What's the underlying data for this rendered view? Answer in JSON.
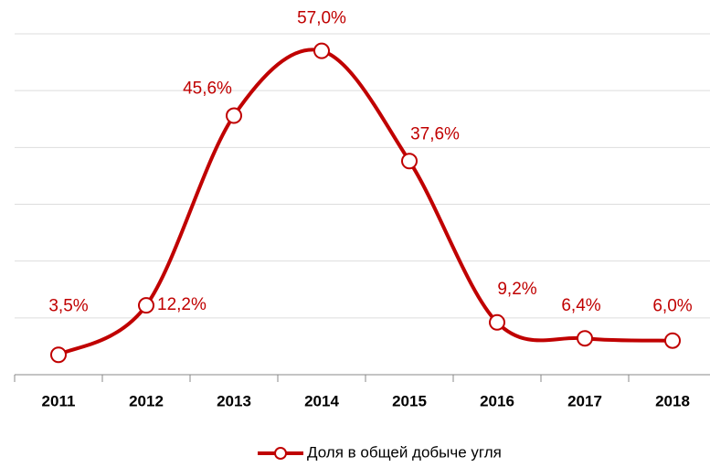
{
  "chart_data": {
    "type": "line",
    "categories": [
      "2011",
      "2012",
      "2013",
      "2014",
      "2015",
      "2016",
      "2017",
      "2018"
    ],
    "series": [
      {
        "name": "Доля в общей добыче угля",
        "color": "#c00000",
        "values": [
          3.5,
          12.2,
          45.6,
          57.0,
          37.6,
          9.2,
          6.4,
          6.0
        ],
        "value_labels": [
          "3,5%",
          "12,2%",
          "45,6%",
          "57,0%",
          "37,6%",
          "9,2%",
          "6,4%",
          "6,0%"
        ]
      }
    ],
    "ylim": [
      0,
      60
    ],
    "yticks": [
      0,
      10,
      20,
      30,
      40,
      50,
      60
    ],
    "grid": true,
    "legend": "bottom"
  }
}
